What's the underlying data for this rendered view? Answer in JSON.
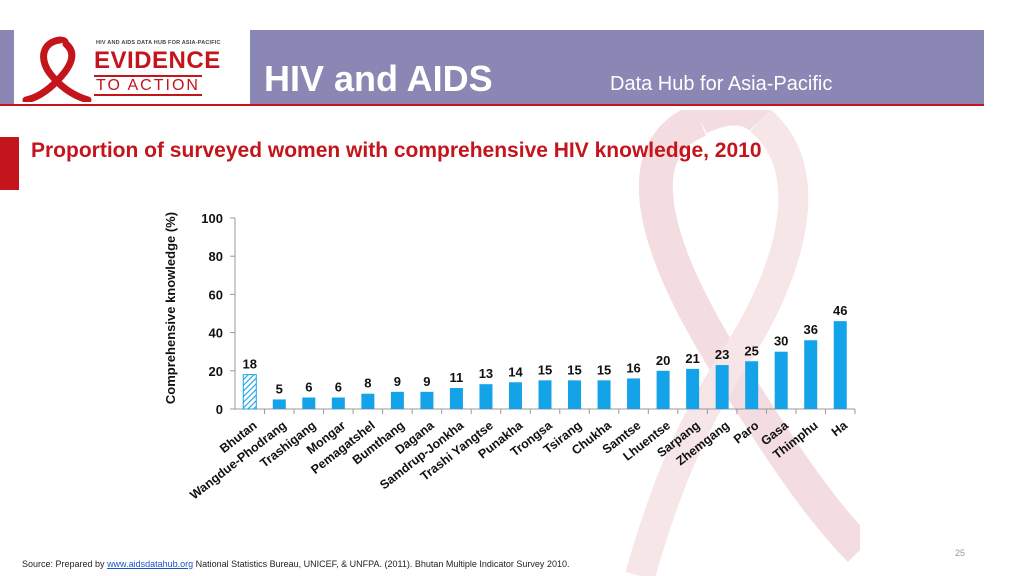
{
  "header": {
    "logo_small_text": "HIV AND AIDS DATA HUB FOR ASIA-PACIFIC",
    "logo_big_text": "EVIDENCE",
    "logo_sub_text": "TO ACTION",
    "title": "HIV and AIDS",
    "subtitle": "Data Hub for Asia-Pacific"
  },
  "colors": {
    "header_bg": "#8a87b5",
    "accent_red": "#c4141c",
    "bar_blue": "#14a3e8"
  },
  "chart_data": {
    "type": "bar",
    "title": "Proportion of surveyed women with comprehensive HIV knowledge, 2010",
    "ylabel": "Comprehensive knowledge (%)",
    "xlabel": "",
    "ylim": [
      0,
      100
    ],
    "yticks": [
      0,
      20,
      40,
      60,
      80,
      100
    ],
    "grid": false,
    "categories": [
      "Bhutan",
      "Wangdue-Phodrang",
      "Trashigang",
      "Mongar",
      "Pemagatshel",
      "Bumthang",
      "Dagana",
      "Samdrup-Jonkha",
      "Trashi Yangtse",
      "Punakha",
      "Trongsa",
      "Tsirang",
      "Chukha",
      "Samtse",
      "Lhuentse",
      "Sarpang",
      "Zhemgang",
      "Paro",
      "Gasa",
      "Thimphu",
      "Ha"
    ],
    "values": [
      18,
      5,
      6,
      6,
      8,
      9,
      9,
      11,
      13,
      14,
      15,
      15,
      15,
      16,
      20,
      21,
      23,
      25,
      30,
      36,
      46
    ],
    "highlight": "Bhutan"
  },
  "footer": {
    "source_prefix": "Source: Prepared by ",
    "source_link": "www.aidsdatahub.org",
    "source_suffix": " National Statistics Bureau, UNICEF, & UNFPA. (2011). Bhutan Multiple Indicator Survey 2010.",
    "slide_number": "25"
  }
}
